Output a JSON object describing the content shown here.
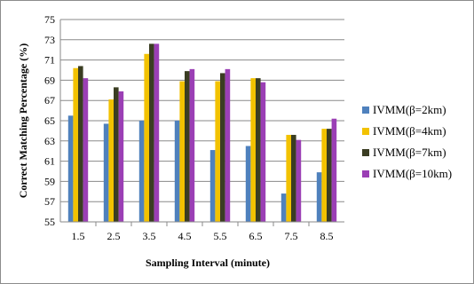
{
  "chart_data": {
    "type": "bar",
    "xlabel": "Sampling Interval (minute)",
    "ylabel": "Correct Matching Percentage (%)",
    "categories": [
      "1.5",
      "2.5",
      "3.5",
      "4.5",
      "5.5",
      "6.5",
      "7.5",
      "8.5"
    ],
    "ylim": [
      55,
      75
    ],
    "yticks": [
      55,
      57,
      59,
      61,
      63,
      65,
      67,
      69,
      71,
      73,
      75
    ],
    "grid": true,
    "legend_position": "right",
    "series": [
      {
        "name": "IVMM(β=2km)",
        "color": "#4f81bd",
        "values": [
          65.5,
          64.7,
          65.0,
          65.0,
          62.1,
          62.5,
          57.8,
          59.9
        ]
      },
      {
        "name": "IVMM(β=4km)",
        "color": "#f2c200",
        "values": [
          70.2,
          67.1,
          71.6,
          68.9,
          68.9,
          69.2,
          63.6,
          64.2
        ]
      },
      {
        "name": "IVMM(β=7km)",
        "color": "#3a3d22",
        "values": [
          70.4,
          68.3,
          72.6,
          69.9,
          69.7,
          69.2,
          63.6,
          64.2
        ]
      },
      {
        "name": "IVMM(β=10km)",
        "color": "#9b3fb5",
        "values": [
          69.2,
          67.9,
          72.6,
          70.1,
          70.1,
          68.8,
          63.1,
          65.2
        ]
      }
    ]
  }
}
